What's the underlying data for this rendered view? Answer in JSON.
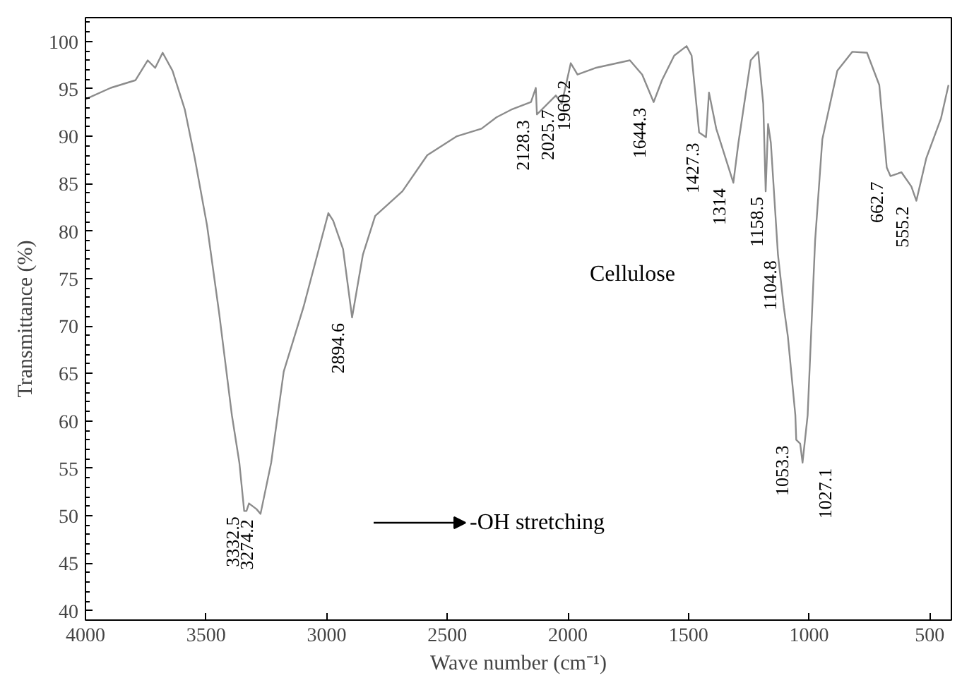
{
  "chart_data": {
    "type": "line",
    "xlabel": "Wave number (cm⁻¹)",
    "ylabel": "Transmittance (%)",
    "xlim": [
      4000,
      410
    ],
    "ylim": [
      39,
      102.5
    ],
    "xticks": [
      4000,
      3500,
      3000,
      2500,
      2000,
      1500,
      1000,
      500
    ],
    "yticks": [
      40,
      45,
      50,
      55,
      60,
      65,
      70,
      75,
      80,
      85,
      90,
      95,
      100
    ],
    "grid": false,
    "marker": "none",
    "line_style": "solid",
    "series": [
      {
        "color": "#8c8c8c",
        "x": [
          4000,
          3895,
          3793,
          3742,
          3711,
          3680,
          3639,
          3588,
          3547,
          3496,
          3446,
          3393,
          3362,
          3342,
          3332.5,
          3322,
          3291,
          3274.2,
          3230,
          3178,
          3096,
          2993,
          2973,
          2932,
          2894.6,
          2850,
          2799,
          2686,
          2583,
          2460,
          2358,
          2296,
          2235,
          2153,
          2133,
          2128.3,
          2050,
          2025.7,
          1988,
          1960.2,
          1886,
          1743,
          1692,
          1644.3,
          1610,
          1559,
          1508,
          1487,
          1456,
          1427.3,
          1415,
          1385,
          1314,
          1293,
          1242,
          1211,
          1190,
          1180,
          1170,
          1158.5,
          1129,
          1104.8,
          1088,
          1057,
          1053.3,
          1037,
          1027.1,
          1006,
          975,
          945,
          883,
          821,
          760,
          709,
          678,
          662.7,
          617,
          576,
          555.2,
          514,
          453,
          422
        ],
        "values": [
          93.9,
          95.1,
          95.9,
          98,
          97.2,
          98.8,
          96.9,
          92.8,
          87.7,
          80.6,
          71.4,
          60.6,
          55.6,
          50.5,
          50.5,
          51.3,
          50.7,
          50.2,
          55.6,
          65.2,
          72,
          81.9,
          81.1,
          78.1,
          70.9,
          77.5,
          81.6,
          84.2,
          88,
          90,
          90.8,
          92,
          92.8,
          93.6,
          95.1,
          92.3,
          94.3,
          93.4,
          97.7,
          96.5,
          97.2,
          98,
          96.5,
          93.6,
          95.9,
          98.5,
          99.5,
          98.5,
          90.4,
          89.9,
          94.6,
          90.8,
          85.1,
          89.3,
          98,
          98.9,
          93.4,
          84.2,
          91.3,
          89.3,
          77.5,
          72,
          68.9,
          60.6,
          58,
          57.6,
          55.6,
          60.6,
          79,
          89.7,
          96.9,
          98.9,
          98.8,
          95.4,
          86.7,
          85.8,
          86.2,
          84.7,
          83.2,
          87.7,
          91.9,
          95.4
        ]
      }
    ],
    "annotations": [
      {
        "text": "3332.5",
        "x": 3332.5,
        "y": 50.5
      },
      {
        "text": "3274.2",
        "x": 3274.2,
        "y": 50.2
      },
      {
        "text": "2894.6",
        "x": 2894.6,
        "y": 70.9
      },
      {
        "text": "2128.3",
        "x": 2128.3,
        "y": 92.3
      },
      {
        "text": "2025.7",
        "x": 2025.7,
        "y": 93.4
      },
      {
        "text": "1960.2",
        "x": 1960.2,
        "y": 96.5
      },
      {
        "text": "1644.3",
        "x": 1644.3,
        "y": 93.6
      },
      {
        "text": "1427.3",
        "x": 1427.3,
        "y": 89.9
      },
      {
        "text": "1314",
        "x": 1314,
        "y": 85.1
      },
      {
        "text": "1158.5",
        "x": 1158.5,
        "y": 84.2
      },
      {
        "text": "1104.8",
        "x": 1104.8,
        "y": 77.5
      },
      {
        "text": "1053.3",
        "x": 1053.3,
        "y": 58
      },
      {
        "text": "1027.1",
        "x": 1027.1,
        "y": 55.6
      },
      {
        "text": "662.7",
        "x": 662.7,
        "y": 85.8
      },
      {
        "text": "555.2",
        "x": 555.2,
        "y": 83.2
      },
      "Cellulose",
      "-OH stretching"
    ]
  }
}
